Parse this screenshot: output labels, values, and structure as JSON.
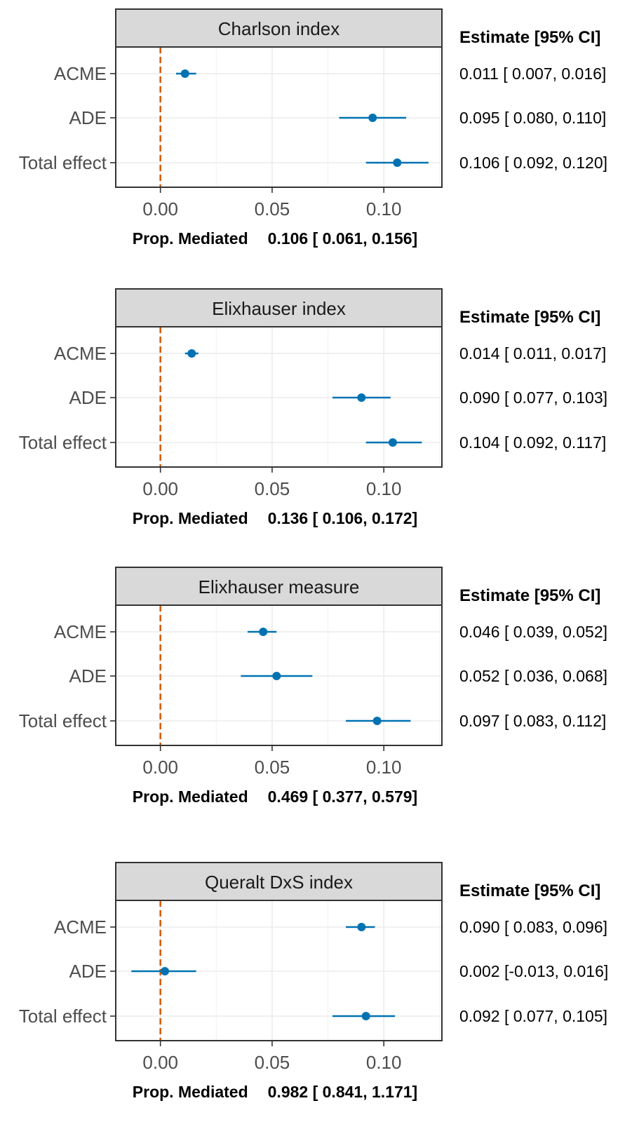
{
  "estimate_header": "Estimate [95% CI]",
  "prop_label": "Prop. Mediated",
  "chart_data": [
    {
      "type": "forest",
      "title": "Charlson index",
      "categories": [
        "ACME",
        "ADE",
        "Total effect"
      ],
      "estimates": [
        0.011,
        0.095,
        0.106
      ],
      "lower": [
        0.007,
        0.08,
        0.092
      ],
      "upper": [
        0.016,
        0.11,
        0.12
      ],
      "ci_text": [
        "0.011 [ 0.007, 0.016]",
        "0.095 [ 0.080, 0.110]",
        "0.106 [ 0.092, 0.120]"
      ],
      "prop_mediated": "0.106 [ 0.061, 0.156]",
      "xlim": [
        -0.02,
        0.126
      ],
      "xticks": [
        0.0,
        0.05,
        0.1
      ],
      "xtick_labels": [
        "0.00",
        "0.05",
        "0.10"
      ],
      "reference_line": 0
    },
    {
      "type": "forest",
      "title": "Elixhauser index",
      "categories": [
        "ACME",
        "ADE",
        "Total effect"
      ],
      "estimates": [
        0.014,
        0.09,
        0.104
      ],
      "lower": [
        0.011,
        0.077,
        0.092
      ],
      "upper": [
        0.017,
        0.103,
        0.117
      ],
      "ci_text": [
        "0.014 [ 0.011, 0.017]",
        "0.090 [ 0.077, 0.103]",
        "0.104 [ 0.092, 0.117]"
      ],
      "prop_mediated": "0.136 [ 0.106, 0.172]",
      "xlim": [
        -0.02,
        0.126
      ],
      "xticks": [
        0.0,
        0.05,
        0.1
      ],
      "xtick_labels": [
        "0.00",
        "0.05",
        "0.10"
      ],
      "reference_line": 0
    },
    {
      "type": "forest",
      "title": "Elixhauser measure",
      "categories": [
        "ACME",
        "ADE",
        "Total effect"
      ],
      "estimates": [
        0.046,
        0.052,
        0.097
      ],
      "lower": [
        0.039,
        0.036,
        0.083
      ],
      "upper": [
        0.052,
        0.068,
        0.112
      ],
      "ci_text": [
        "0.046 [ 0.039, 0.052]",
        "0.052 [ 0.036, 0.068]",
        "0.097 [ 0.083, 0.112]"
      ],
      "prop_mediated": "0.469 [ 0.377, 0.579]",
      "xlim": [
        -0.02,
        0.126
      ],
      "xticks": [
        0.0,
        0.05,
        0.1
      ],
      "xtick_labels": [
        "0.00",
        "0.05",
        "0.10"
      ],
      "reference_line": 0
    },
    {
      "type": "forest",
      "title": "Queralt DxS index",
      "categories": [
        "ACME",
        "ADE",
        "Total effect"
      ],
      "estimates": [
        0.09,
        0.002,
        0.092
      ],
      "lower": [
        0.083,
        -0.013,
        0.077
      ],
      "upper": [
        0.096,
        0.016,
        0.105
      ],
      "ci_text": [
        "0.090 [ 0.083, 0.096]",
        "0.002 [-0.013, 0.016]",
        "0.092 [ 0.077, 0.105]"
      ],
      "prop_mediated": "0.982 [ 0.841, 1.171]",
      "xlim": [
        -0.02,
        0.126
      ],
      "xticks": [
        0.0,
        0.05,
        0.1
      ],
      "xtick_labels": [
        "0.00",
        "0.05",
        "0.10"
      ],
      "reference_line": 0
    }
  ],
  "colors": {
    "point": "#0072B2",
    "reference_line": "#D55E00",
    "strip_fill": "#d9d9d9",
    "panel_border": "#333333",
    "grid": "#ebebeb"
  }
}
